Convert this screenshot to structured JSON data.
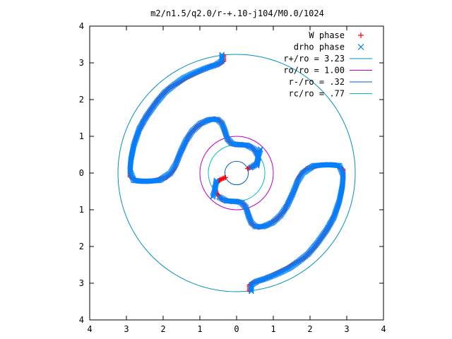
{
  "chart_data": {
    "type": "scatter",
    "title": "m2/n1.5/q2.0/r-+.10-j104/M0.0/1024",
    "xlabel": "",
    "ylabel": "",
    "xlim": [
      -4,
      4
    ],
    "ylim": [
      -4,
      4
    ],
    "x_ticks": [
      -4,
      -3,
      -2,
      -1,
      0,
      1,
      2,
      3,
      4
    ],
    "y_ticks": [
      -4,
      -3,
      -2,
      -1,
      0,
      1,
      2,
      3,
      4
    ],
    "x_tick_labels": [
      "4",
      "3",
      "2",
      "1",
      "0",
      "1",
      "2",
      "3",
      "4"
    ],
    "y_tick_labels": [
      "4",
      "3",
      "2",
      "1",
      "0",
      "1",
      "2",
      "3",
      "4"
    ],
    "grid": false,
    "legend_position": "top-right",
    "colors": {
      "w_phase": "#ff0000",
      "drho_phase": "#0080ff",
      "r_plus": "#0090c0",
      "ro": "#c000c0",
      "r_minus": "#0060c0",
      "rc": "#00c0c0"
    },
    "circles": [
      {
        "name": "r+/ro = 3.23",
        "radius": 3.23
      },
      {
        "name": "ro/ro = 1.00",
        "radius": 1.0
      },
      {
        "name": "r-/ro = .32",
        "radius": 0.32
      },
      {
        "name": "rc/ro = .77",
        "radius": 0.77
      }
    ],
    "series": [
      {
        "name": "W phase",
        "marker": "plus",
        "points": [
          [
            -0.35,
            3.22
          ],
          [
            -0.35,
            3.05
          ],
          [
            -0.45,
            2.98
          ],
          [
            -0.7,
            2.9
          ],
          [
            -0.95,
            2.8
          ],
          [
            -1.15,
            2.7
          ],
          [
            -1.35,
            2.6
          ],
          [
            -1.6,
            2.45
          ],
          [
            -1.85,
            2.3
          ],
          [
            -2.1,
            2.05
          ],
          [
            -2.35,
            1.7
          ],
          [
            -2.55,
            1.4
          ],
          [
            -2.75,
            0.95
          ],
          [
            -2.85,
            0.55
          ],
          [
            -2.9,
            0.2
          ],
          [
            -2.9,
            -0.1
          ],
          [
            -2.7,
            -0.22
          ],
          [
            -2.3,
            -0.22
          ],
          [
            -1.9,
            -0.12
          ],
          [
            -1.7,
            0.1
          ],
          [
            -1.6,
            0.4
          ],
          [
            -1.45,
            0.72
          ],
          [
            -1.3,
            1.02
          ],
          [
            -1.1,
            1.25
          ],
          [
            -0.85,
            1.42
          ],
          [
            -0.6,
            1.48
          ],
          [
            -0.45,
            1.42
          ],
          [
            -0.35,
            1.25
          ],
          [
            -0.3,
            1.05
          ],
          [
            -0.2,
            0.85
          ],
          [
            -0.05,
            0.77
          ],
          [
            0.15,
            0.78
          ],
          [
            0.4,
            0.72
          ],
          [
            0.55,
            0.55
          ],
          [
            0.6,
            0.35
          ],
          [
            0.45,
            0.18
          ],
          [
            0.3,
            0.12
          ],
          [
            0.35,
            -3.22
          ],
          [
            0.35,
            -3.05
          ],
          [
            0.45,
            -2.98
          ],
          [
            0.7,
            -2.9
          ],
          [
            0.95,
            -2.8
          ],
          [
            1.15,
            -2.7
          ],
          [
            1.35,
            -2.6
          ],
          [
            1.6,
            -2.45
          ],
          [
            1.85,
            -2.3
          ],
          [
            2.1,
            -2.05
          ],
          [
            2.35,
            -1.7
          ],
          [
            2.55,
            -1.4
          ],
          [
            2.75,
            -0.95
          ],
          [
            2.85,
            -0.55
          ],
          [
            2.9,
            -0.2
          ],
          [
            2.9,
            0.1
          ],
          [
            2.7,
            0.22
          ],
          [
            2.3,
            0.22
          ],
          [
            1.9,
            0.12
          ],
          [
            1.7,
            -0.1
          ],
          [
            1.6,
            -0.4
          ],
          [
            1.45,
            -0.72
          ],
          [
            1.3,
            -1.02
          ],
          [
            1.1,
            -1.25
          ],
          [
            0.85,
            -1.42
          ],
          [
            0.6,
            -1.48
          ],
          [
            0.45,
            -1.42
          ],
          [
            0.35,
            -1.25
          ],
          [
            0.3,
            -1.05
          ],
          [
            0.2,
            -0.85
          ],
          [
            0.05,
            -0.77
          ],
          [
            -0.15,
            -0.78
          ],
          [
            -0.4,
            -0.72
          ],
          [
            -0.55,
            -0.55
          ],
          [
            -0.6,
            -0.35
          ],
          [
            -0.45,
            -0.18
          ],
          [
            -0.3,
            -0.12
          ]
        ]
      },
      {
        "name": "drho phase",
        "marker": "cross",
        "points": [
          [
            -0.4,
            3.22
          ],
          [
            -0.4,
            3.05
          ],
          [
            -0.55,
            2.95
          ],
          [
            -0.8,
            2.87
          ],
          [
            -1.05,
            2.77
          ],
          [
            -1.25,
            2.68
          ],
          [
            -1.45,
            2.58
          ],
          [
            -1.7,
            2.4
          ],
          [
            -1.95,
            2.2
          ],
          [
            -2.2,
            1.9
          ],
          [
            -2.45,
            1.55
          ],
          [
            -2.65,
            1.2
          ],
          [
            -2.8,
            0.75
          ],
          [
            -2.88,
            0.35
          ],
          [
            -2.9,
            0.05
          ],
          [
            -2.8,
            -0.2
          ],
          [
            -2.5,
            -0.23
          ],
          [
            -2.1,
            -0.2
          ],
          [
            -1.8,
            0.0
          ],
          [
            -1.65,
            0.25
          ],
          [
            -1.52,
            0.58
          ],
          [
            -1.38,
            0.88
          ],
          [
            -1.2,
            1.15
          ],
          [
            -0.98,
            1.35
          ],
          [
            -0.72,
            1.46
          ],
          [
            -0.52,
            1.46
          ],
          [
            -0.4,
            1.35
          ],
          [
            -0.32,
            1.15
          ],
          [
            -0.25,
            0.93
          ],
          [
            -0.12,
            0.8
          ],
          [
            0.05,
            0.77
          ],
          [
            0.28,
            0.76
          ],
          [
            0.48,
            0.65
          ],
          [
            0.6,
            0.45
          ],
          [
            0.55,
            0.25
          ],
          [
            0.38,
            0.14
          ],
          [
            -0.55,
            -0.2
          ],
          [
            -0.6,
            -0.5
          ],
          [
            -0.65,
            -0.65
          ],
          [
            0.4,
            -3.22
          ],
          [
            0.4,
            -3.05
          ],
          [
            0.55,
            -2.95
          ],
          [
            0.8,
            -2.87
          ],
          [
            1.05,
            -2.77
          ],
          [
            1.25,
            -2.68
          ],
          [
            1.45,
            -2.58
          ],
          [
            1.7,
            -2.4
          ],
          [
            1.95,
            -2.2
          ],
          [
            2.2,
            -1.9
          ],
          [
            2.45,
            -1.55
          ],
          [
            2.65,
            -1.2
          ],
          [
            2.8,
            -0.75
          ],
          [
            2.88,
            -0.35
          ],
          [
            2.9,
            -0.05
          ],
          [
            2.8,
            0.2
          ],
          [
            2.5,
            0.23
          ],
          [
            2.1,
            0.2
          ],
          [
            1.8,
            0.0
          ],
          [
            1.65,
            -0.25
          ],
          [
            1.52,
            -0.58
          ],
          [
            1.38,
            -0.88
          ],
          [
            1.2,
            -1.15
          ],
          [
            0.98,
            -1.35
          ],
          [
            0.72,
            -1.46
          ],
          [
            0.52,
            -1.46
          ],
          [
            0.4,
            -1.35
          ],
          [
            0.32,
            -1.15
          ],
          [
            0.25,
            -0.93
          ],
          [
            0.12,
            -0.8
          ],
          [
            -0.05,
            -0.77
          ],
          [
            -0.28,
            -0.76
          ],
          [
            -0.48,
            -0.65
          ],
          [
            0.55,
            0.2
          ],
          [
            0.6,
            0.5
          ],
          [
            0.65,
            0.65
          ]
        ]
      }
    ],
    "legend": [
      {
        "label": "W phase",
        "type": "marker",
        "marker": "plus",
        "color": "#ff0000"
      },
      {
        "label": "drho phase",
        "type": "marker",
        "marker": "cross",
        "color": "#0080ff"
      },
      {
        "label": "r+/ro = 3.23",
        "type": "line",
        "color": "#0090c0"
      },
      {
        "label": "ro/ro = 1.00",
        "type": "line",
        "color": "#c000c0"
      },
      {
        "label": "r-/ro = .32",
        "type": "line",
        "color": "#0060c0"
      },
      {
        "label": "rc/ro = .77",
        "type": "line",
        "color": "#00c0c0"
      }
    ]
  }
}
